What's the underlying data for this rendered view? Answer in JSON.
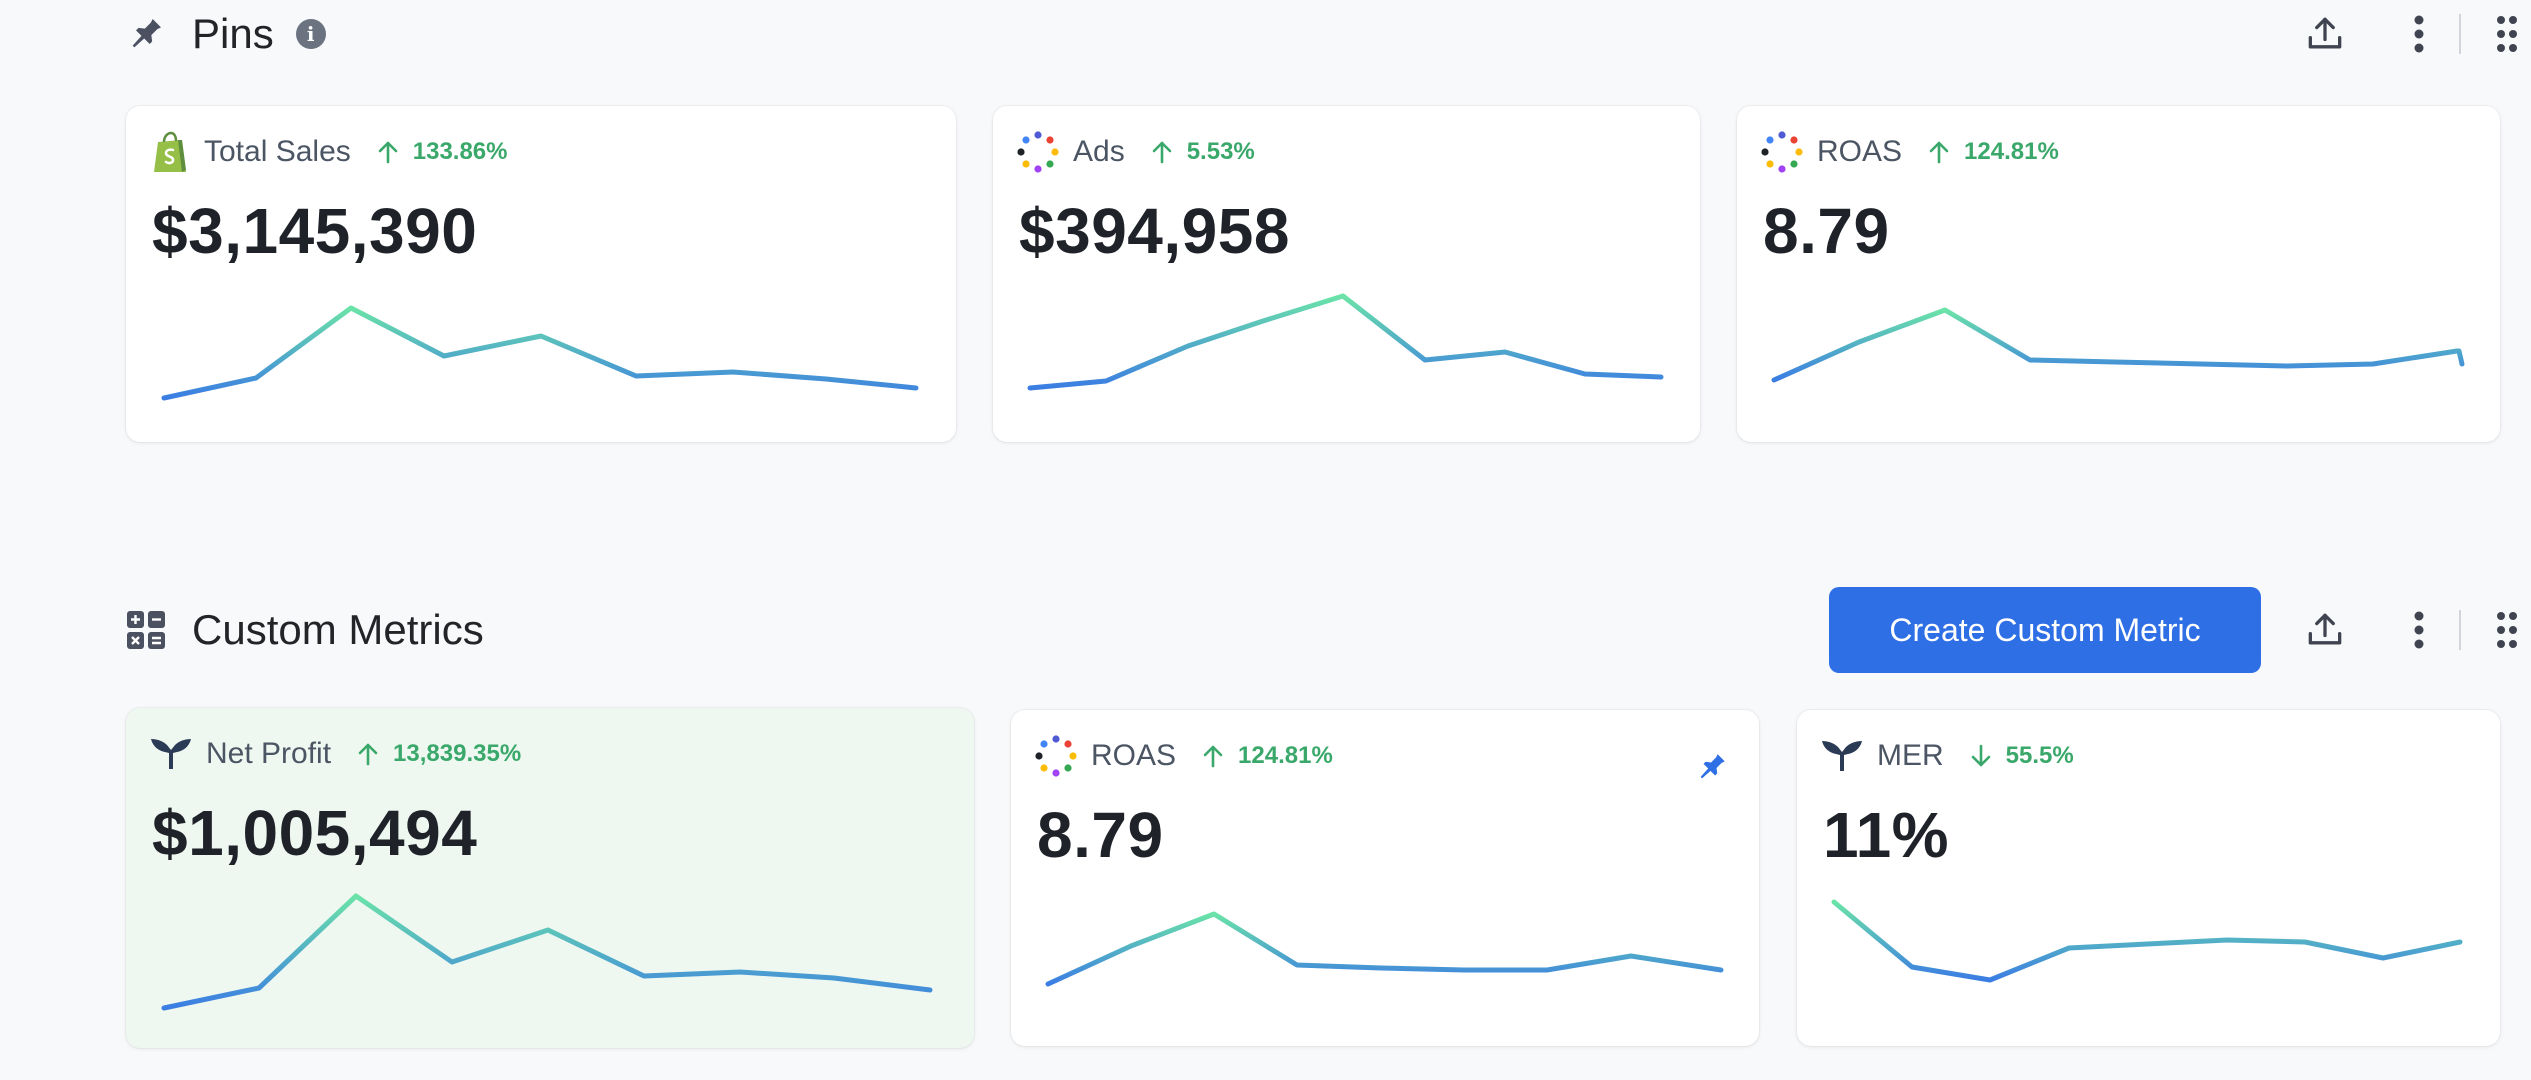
{
  "pins": {
    "title": "Pins",
    "cards": [
      {
        "label": "Total Sales",
        "delta": "133.86%",
        "direction": "up",
        "value": "$3,145,390",
        "source_icon": "shopify-bag-icon"
      },
      {
        "label": "Ads",
        "delta": "5.53%",
        "direction": "up",
        "value": "$394,958",
        "source_icon": "dotted-ring-icon"
      },
      {
        "label": "ROAS",
        "delta": "124.81%",
        "direction": "up",
        "value": "8.79",
        "source_icon": "dotted-ring-icon"
      }
    ]
  },
  "custom_metrics": {
    "title": "Custom Metrics",
    "create_button_label": "Create Custom Metric",
    "cards": [
      {
        "label": "Net Profit",
        "delta": "13,839.35%",
        "direction": "up",
        "value": "$1,005,494",
        "source_icon": "triple-whale-icon",
        "highlighted": true
      },
      {
        "label": "ROAS",
        "delta": "124.81%",
        "direction": "up",
        "value": "8.79",
        "source_icon": "dotted-ring-icon",
        "pinned": true
      },
      {
        "label": "MER",
        "delta": "55.5%",
        "direction": "down",
        "value": "11%",
        "source_icon": "triple-whale-icon"
      }
    ]
  },
  "colors": {
    "accent": "#2f6fe6",
    "positive": "#3aa86a",
    "line_high": "#6be3a8",
    "line_low": "#3b7de3",
    "highlight_card": "#eef8f1"
  }
}
